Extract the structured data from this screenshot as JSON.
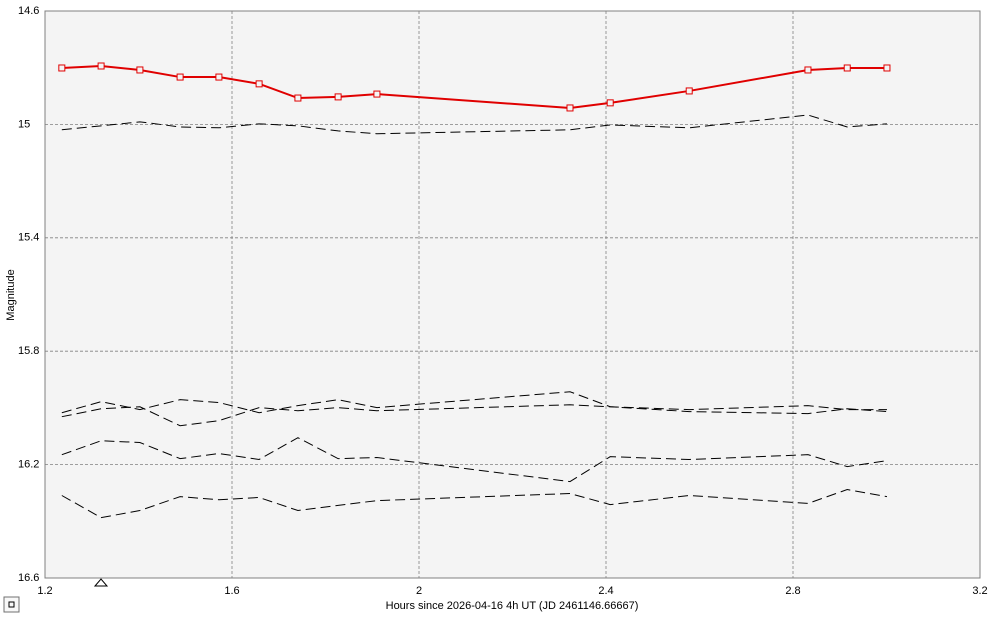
{
  "chart_data": {
    "type": "line",
    "x_label": "Hours since 2026-04-16 4h UT (JD 2461146.66667)",
    "y_label": "Magnitude",
    "x": [
      1.236,
      1.32,
      1.403,
      1.489,
      1.572,
      1.658,
      1.741,
      1.827,
      1.91,
      2.323,
      2.409,
      2.578,
      2.832,
      2.916,
      3.001
    ],
    "series": [
      {
        "color": "#e00000",
        "style": "solid",
        "markers": true,
        "values": [
          14.801,
          14.794,
          14.808,
          14.833,
          14.833,
          14.857,
          14.907,
          14.903,
          14.893,
          14.942,
          14.924,
          14.882,
          14.808,
          14.801,
          14.801
        ]
      },
      {
        "color": "#000000",
        "style": "dashed",
        "markers": false,
        "values": [
          15.019,
          15.005,
          14.991,
          15.009,
          15.012,
          14.998,
          15.005,
          15.023,
          15.033,
          15.019,
          15.002,
          15.012,
          14.967,
          15.009,
          14.998
        ]
      },
      {
        "color": "#000000",
        "style": "dashed",
        "markers": false,
        "values": [
          16.017,
          15.978,
          16.006,
          15.971,
          15.981,
          16.017,
          15.992,
          15.971,
          15.999,
          15.943,
          15.996,
          16.013,
          16.02,
          16.003,
          16.013
        ]
      },
      {
        "color": "#000000",
        "style": "dashed",
        "markers": false,
        "values": [
          16.031,
          16.003,
          15.996,
          16.063,
          16.045,
          15.999,
          16.01,
          15.999,
          16.01,
          15.989,
          15.996,
          16.006,
          15.992,
          16.006,
          16.006
        ]
      },
      {
        "color": "#000000",
        "style": "dashed",
        "markers": false,
        "values": [
          16.165,
          16.116,
          16.122,
          16.179,
          16.161,
          16.182,
          16.105,
          16.179,
          16.175,
          16.26,
          16.172,
          16.182,
          16.165,
          16.207,
          16.186
        ]
      },
      {
        "color": "#000000",
        "style": "dashed",
        "markers": false,
        "values": [
          16.309,
          16.387,
          16.362,
          16.313,
          16.324,
          16.316,
          16.362,
          16.344,
          16.327,
          16.302,
          16.341,
          16.309,
          16.337,
          16.288,
          16.313
        ]
      }
    ],
    "xlim": [
      1.2,
      3.2
    ],
    "xticks": [
      1.2,
      1.6,
      2,
      2.4,
      2.8,
      3.2
    ],
    "ylim": [
      14.6,
      16.6
    ],
    "yticks": [
      14.6,
      15,
      15.4,
      15.8,
      16.2,
      16.6
    ],
    "y_inverted": true,
    "grid": true
  }
}
